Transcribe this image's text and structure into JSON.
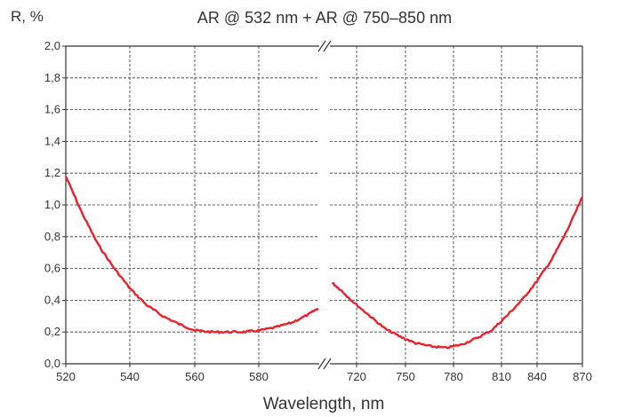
{
  "chart_data": {
    "type": "line",
    "title": "AR @ 532 nm + AR @ 750–850 nm",
    "xlabel": "Wavelength, nm",
    "ylabel": "R, %",
    "ylim": [
      0,
      2.0
    ],
    "y_ticks": [
      "0,0",
      "0,2",
      "0,4",
      "0,6",
      "0,8",
      "1,0",
      "1,2",
      "1,4",
      "1,6",
      "1,8",
      "2,0"
    ],
    "x_axis_break": true,
    "grid": true,
    "line_color": "#e8212b",
    "segments": [
      {
        "xlim": [
          520,
          600
        ],
        "x_ticks": [
          "520",
          "540",
          "560",
          "580"
        ],
        "x": [
          520,
          525,
          530,
          535,
          540,
          545,
          550,
          555,
          560,
          565,
          570,
          575,
          580,
          585,
          590,
          595,
          598
        ],
        "y": [
          1.18,
          0.95,
          0.75,
          0.6,
          0.47,
          0.37,
          0.3,
          0.25,
          0.21,
          0.2,
          0.2,
          0.2,
          0.21,
          0.23,
          0.26,
          0.31,
          0.35
        ]
      },
      {
        "xlim": [
          700,
          870
        ],
        "x_ticks": [
          "720",
          "750",
          "780",
          "810",
          "840",
          "870"
        ],
        "x": [
          705,
          710,
          720,
          730,
          740,
          750,
          760,
          770,
          780,
          790,
          800,
          810,
          820,
          830,
          840,
          850,
          860,
          870
        ],
        "y": [
          0.51,
          0.47,
          0.38,
          0.3,
          0.22,
          0.17,
          0.13,
          0.11,
          0.1,
          0.12,
          0.16,
          0.21,
          0.3,
          0.4,
          0.52,
          0.66,
          0.84,
          1.05
        ]
      }
    ]
  }
}
